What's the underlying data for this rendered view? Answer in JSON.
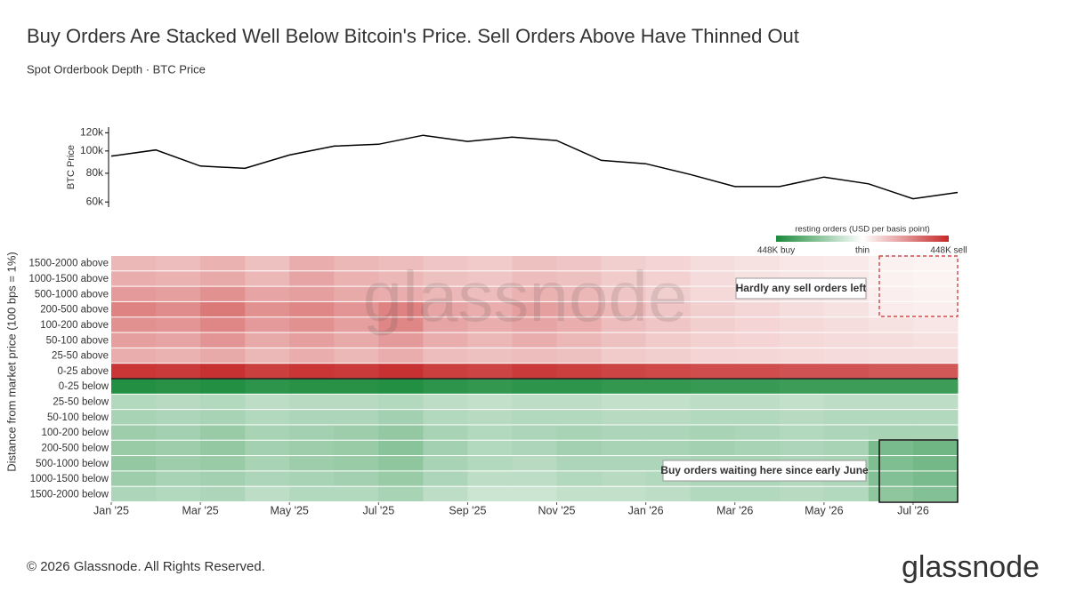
{
  "title": "Buy Orders Are Stacked Well Below Bitcoin's Price. Sell Orders Above Have Thinned Out",
  "subtitle": "Spot Orderbook Depth · BTC Price",
  "footer": "© 2026 Glassnode. All Rights Reserved.",
  "logo": "glassnode",
  "watermark": "glassnode",
  "chart_data": [
    {
      "type": "line",
      "y_label": "BTC Price",
      "log_y": true,
      "color": "#000000",
      "x": [
        "2025-01",
        "2025-02",
        "2025-03",
        "2025-04",
        "2025-05",
        "2025-06",
        "2025-07",
        "2025-08",
        "2025-09",
        "2025-10",
        "2025-11",
        "2025-12",
        "2026-01",
        "2026-02",
        "2026-03",
        "2026-04",
        "2026-05",
        "2026-06",
        "2026-07",
        "2026-08"
      ],
      "values": [
        95000,
        101000,
        86000,
        84000,
        96000,
        105000,
        107000,
        117000,
        110000,
        115000,
        111000,
        91000,
        88000,
        79000,
        70000,
        70000,
        77000,
        72000,
        62000,
        66000
      ],
      "xlim": [
        "2025-01",
        "2026-08"
      ],
      "ylim": [
        57000,
        127000
      ],
      "yticks": [
        {
          "value": 60000,
          "label": "60k"
        },
        {
          "value": 80000,
          "label": "80k"
        },
        {
          "value": 100000,
          "label": "100k"
        },
        {
          "value": 120000,
          "label": "120k"
        }
      ]
    },
    {
      "type": "heatmap",
      "y_label": "Distance from market price (100 bps = 1%)",
      "colorbar_title": "resting orders (USD per basis point)",
      "clim": [
        -448,
        448
      ],
      "cticks": [
        {
          "value": -448,
          "label": "448K buy"
        },
        {
          "value": 0,
          "label": "thin"
        },
        {
          "value": 448,
          "label": "448K sell"
        }
      ],
      "buy_color": "#1a8a3a",
      "sell_color": "#c62828",
      "thin_color": "#ffffff",
      "x": [
        "2025-01",
        "2025-02",
        "2025-03",
        "2025-04",
        "2025-05",
        "2025-06",
        "2025-07",
        "2025-08",
        "2025-09",
        "2025-10",
        "2025-11",
        "2025-12",
        "2026-01",
        "2026-02",
        "2026-03",
        "2026-04",
        "2026-05",
        "2026-06",
        "2026-07"
      ],
      "xlim": [
        "2025-01",
        "2026-08"
      ],
      "xticks": [
        {
          "value": "2025-01",
          "label": "Jan '25"
        },
        {
          "value": "2025-03",
          "label": "Mar '25"
        },
        {
          "value": "2025-05",
          "label": "May '25"
        },
        {
          "value": "2025-07",
          "label": "Jul '25"
        },
        {
          "value": "2025-09",
          "label": "Sep '25"
        },
        {
          "value": "2025-11",
          "label": "Nov '25"
        },
        {
          "value": "2026-01",
          "label": "Jan '26"
        },
        {
          "value": "2026-03",
          "label": "Mar '26"
        },
        {
          "value": "2026-05",
          "label": "May '26"
        },
        {
          "value": "2026-07",
          "label": "Jul '26"
        }
      ],
      "categories": [
        "1500-2000 above",
        "1000-1500 above",
        "500-1000 above",
        "200-500 above",
        "100-200 above",
        "50-100 above",
        "25-50 above",
        "0-25 above",
        "0-25 below",
        "25-50 below",
        "50-100 below",
        "100-200 below",
        "200-500 below",
        "500-1000 below",
        "1000-1500 below",
        "1500-2000 below"
      ],
      "values": [
        [
          150,
          140,
          160,
          130,
          170,
          150,
          140,
          120,
          110,
          130,
          120,
          100,
          90,
          70,
          60,
          50,
          45,
          30,
          25
        ],
        [
          170,
          160,
          180,
          150,
          190,
          160,
          150,
          130,
          120,
          140,
          130,
          110,
          95,
          75,
          60,
          55,
          45,
          30,
          25
        ],
        [
          210,
          200,
          230,
          190,
          200,
          180,
          170,
          150,
          140,
          160,
          150,
          120,
          100,
          80,
          70,
          60,
          50,
          35,
          30
        ],
        [
          260,
          240,
          280,
          230,
          250,
          220,
          260,
          190,
          170,
          200,
          180,
          150,
          120,
          100,
          85,
          70,
          60,
          40,
          35
        ],
        [
          230,
          220,
          250,
          210,
          230,
          200,
          250,
          190,
          170,
          190,
          170,
          140,
          120,
          100,
          90,
          80,
          70,
          60,
          55
        ],
        [
          200,
          190,
          220,
          180,
          200,
          180,
          210,
          170,
          150,
          170,
          150,
          130,
          110,
          95,
          90,
          80,
          75,
          70,
          65
        ],
        [
          170,
          160,
          180,
          150,
          170,
          150,
          170,
          140,
          130,
          140,
          130,
          110,
          100,
          90,
          85,
          80,
          75,
          70,
          70
        ],
        [
          420,
          410,
          430,
          400,
          420,
          410,
          430,
          400,
          390,
          410,
          400,
          390,
          380,
          370,
          370,
          360,
          360,
          350,
          350
        ],
        [
          -430,
          -420,
          -430,
          -410,
          -420,
          -420,
          -430,
          -410,
          -400,
          -410,
          -410,
          -400,
          -400,
          -390,
          -390,
          -380,
          -380,
          -380,
          -380
        ],
        [
          -150,
          -140,
          -150,
          -130,
          -140,
          -140,
          -150,
          -130,
          -120,
          -130,
          -130,
          -120,
          -120,
          -130,
          -130,
          -120,
          -130,
          -130,
          -130
        ],
        [
          -170,
          -160,
          -170,
          -150,
          -160,
          -160,
          -180,
          -150,
          -140,
          -150,
          -150,
          -140,
          -140,
          -150,
          -150,
          -140,
          -150,
          -150,
          -150
        ],
        [
          -190,
          -180,
          -200,
          -170,
          -180,
          -190,
          -210,
          -170,
          -150,
          -160,
          -170,
          -160,
          -160,
          -170,
          -160,
          -150,
          -160,
          -170,
          -170
        ],
        [
          -200,
          -190,
          -210,
          -180,
          -190,
          -200,
          -230,
          -180,
          -150,
          -160,
          -180,
          -170,
          -170,
          -180,
          -170,
          -160,
          -170,
          -260,
          -280
        ],
        [
          -210,
          -190,
          -200,
          -170,
          -190,
          -200,
          -220,
          -170,
          -150,
          -140,
          -160,
          -160,
          -160,
          -170,
          -170,
          -160,
          -170,
          -250,
          -270
        ],
        [
          -190,
          -170,
          -180,
          -160,
          -170,
          -180,
          -200,
          -160,
          -130,
          -130,
          -150,
          -140,
          -150,
          -160,
          -160,
          -150,
          -160,
          -240,
          -260
        ],
        [
          -160,
          -150,
          -160,
          -130,
          -150,
          -150,
          -170,
          -130,
          -100,
          -100,
          -120,
          -120,
          -130,
          -150,
          -150,
          -140,
          -150,
          -220,
          -240
        ]
      ],
      "annotations": [
        {
          "text": "Hardly any sell orders left",
          "color": "#c62828"
        },
        {
          "text": "Buy orders waiting here since early June",
          "color": "#1a8a3a"
        }
      ]
    }
  ]
}
